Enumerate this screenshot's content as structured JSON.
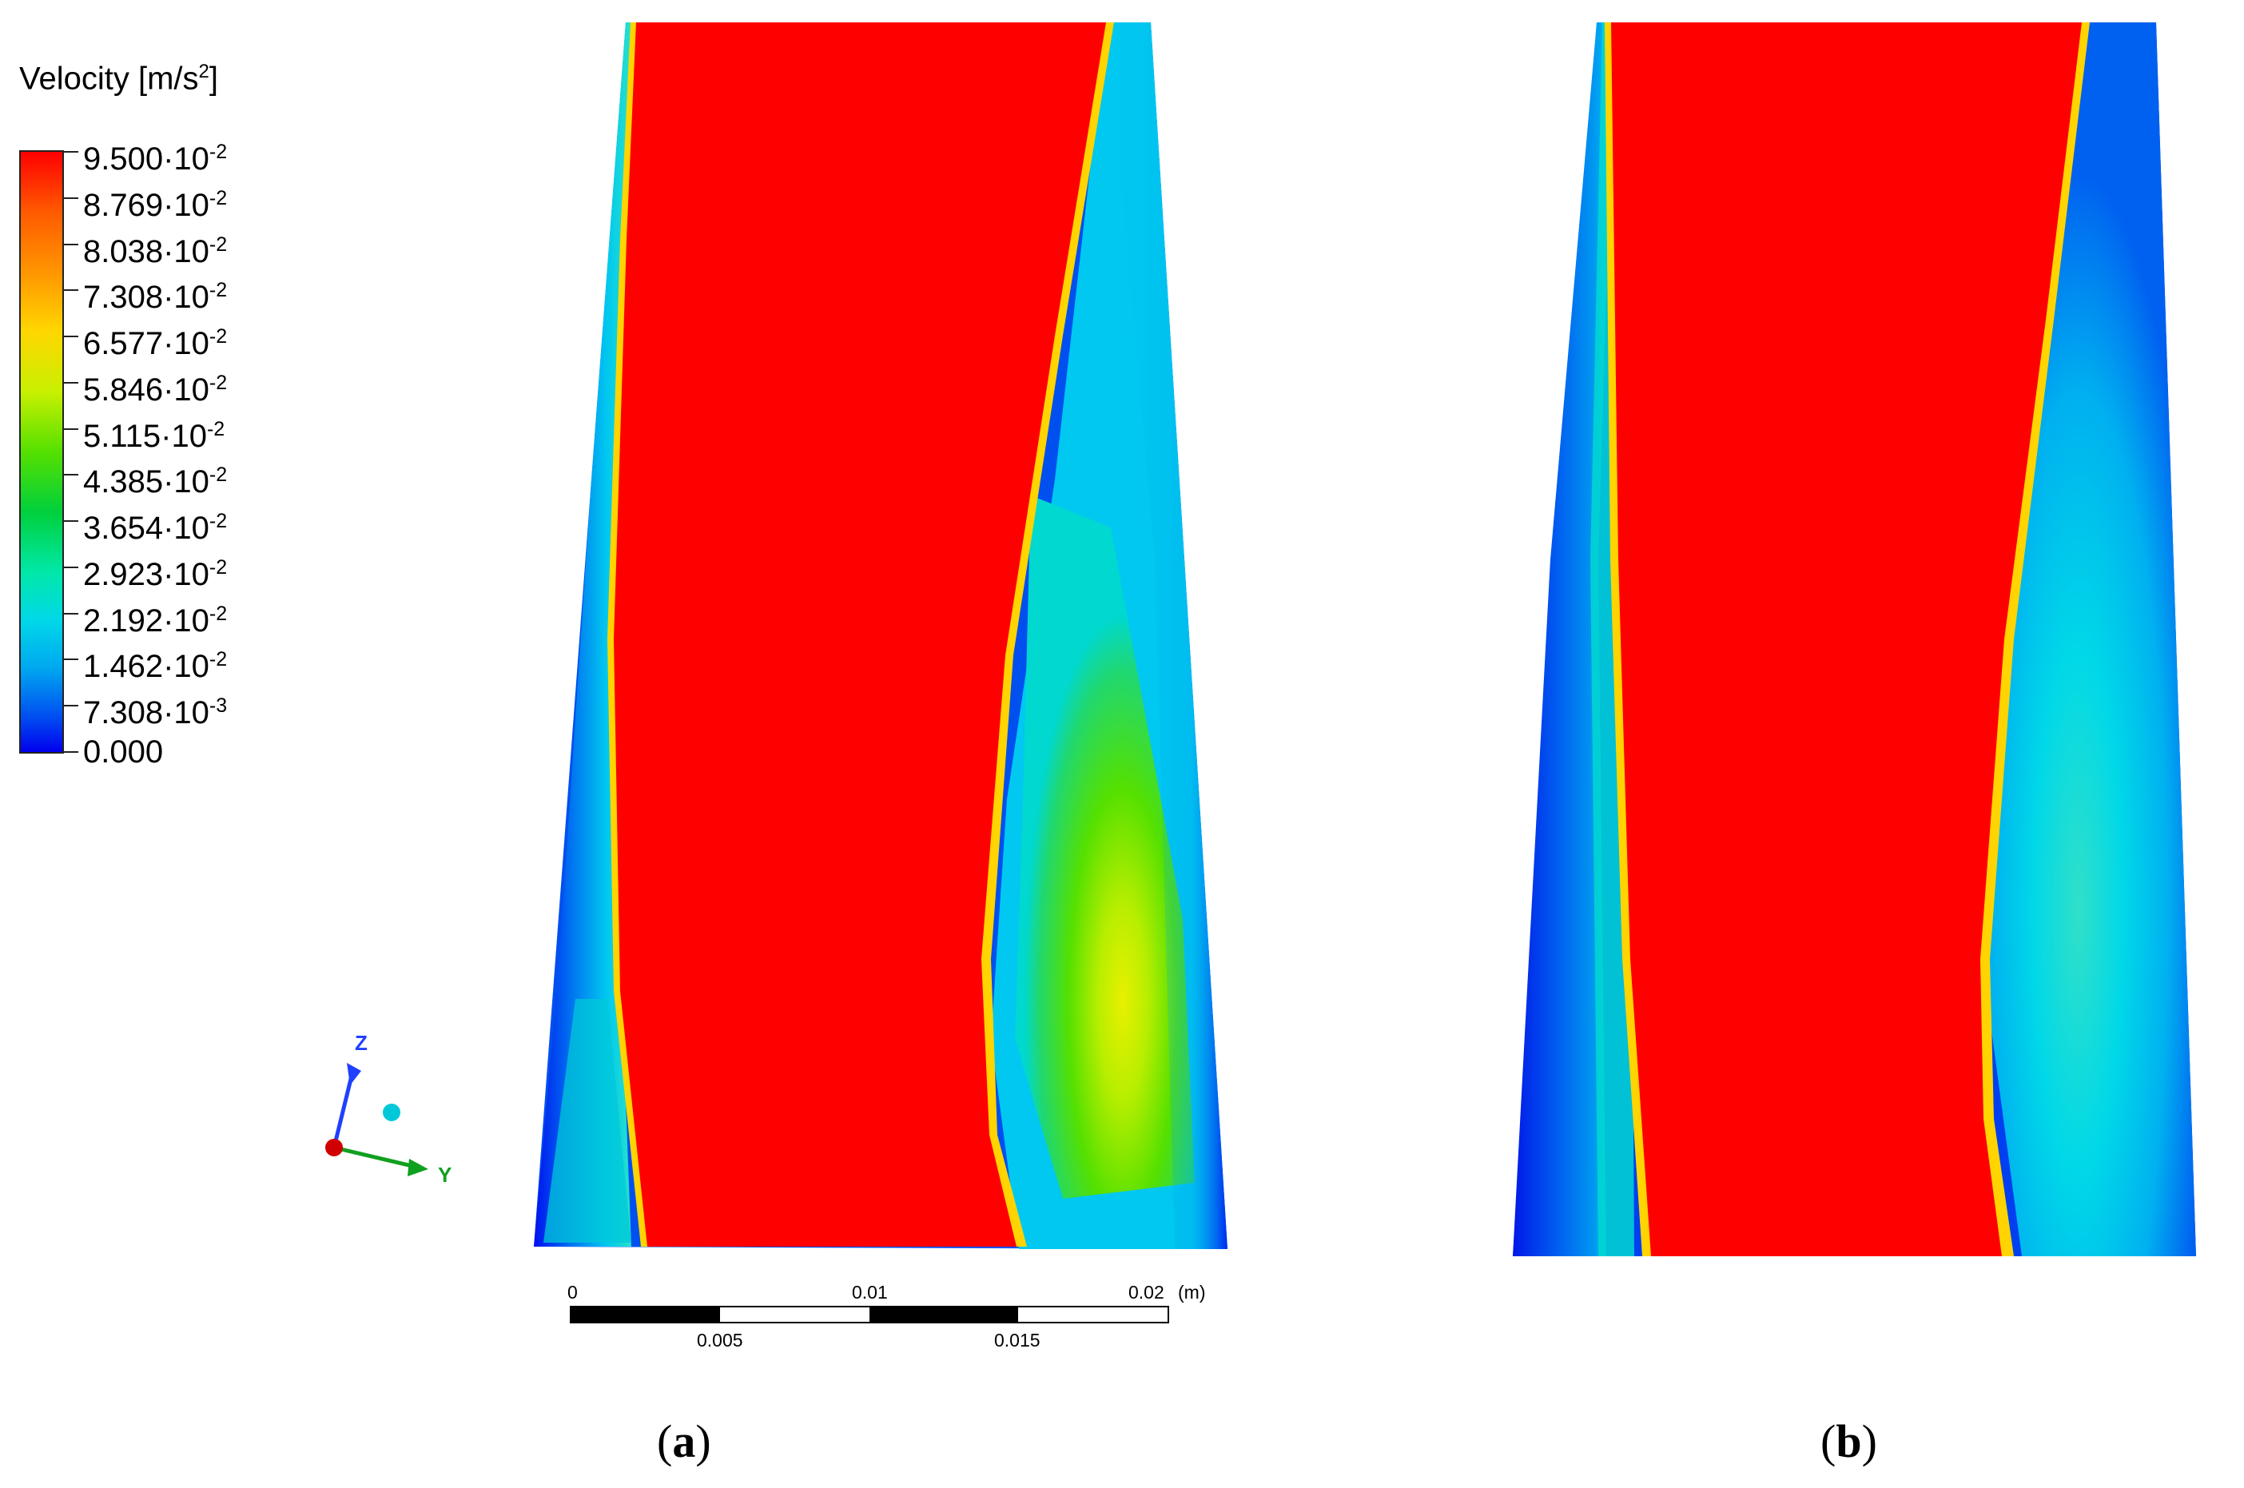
{
  "legend": {
    "title": "Velocity [m/s",
    "title_sup": "2",
    "title_close": "]",
    "entries": [
      {
        "mantissa": "9.500",
        "exp": "-2"
      },
      {
        "mantissa": "8.769",
        "exp": "-2"
      },
      {
        "mantissa": "8.038",
        "exp": "-2"
      },
      {
        "mantissa": "7.308",
        "exp": "-2"
      },
      {
        "mantissa": "6.577",
        "exp": "-2"
      },
      {
        "mantissa": "5.846",
        "exp": "-2"
      },
      {
        "mantissa": "5.115",
        "exp": "-2"
      },
      {
        "mantissa": "4.385",
        "exp": "-2"
      },
      {
        "mantissa": "3.654",
        "exp": "-2"
      },
      {
        "mantissa": "2.923",
        "exp": "-2"
      },
      {
        "mantissa": "2.192",
        "exp": "-2"
      },
      {
        "mantissa": "1.462",
        "exp": "-2"
      },
      {
        "mantissa": "7.308",
        "exp": "-3"
      },
      {
        "mantissa": "0.000",
        "exp": ""
      }
    ]
  },
  "axes_triad": {
    "z_label": "Z",
    "y_label": "Y"
  },
  "scale_bar": {
    "top_labels": [
      "0",
      "0.01",
      "0.02"
    ],
    "unit": "(m)",
    "bottom_labels": [
      "0.005",
      "0.015"
    ]
  },
  "captions": {
    "a": {
      "open": "(",
      "letter": "a",
      "close": ")"
    },
    "b": {
      "open": "(",
      "letter": "b",
      "close": ")"
    }
  },
  "colors": {
    "max": "#ff0000",
    "high": "#ffd700",
    "mid": "#55e000",
    "low_mid": "#00e8d0",
    "low": "#0060f0",
    "min": "#0000ee"
  }
}
